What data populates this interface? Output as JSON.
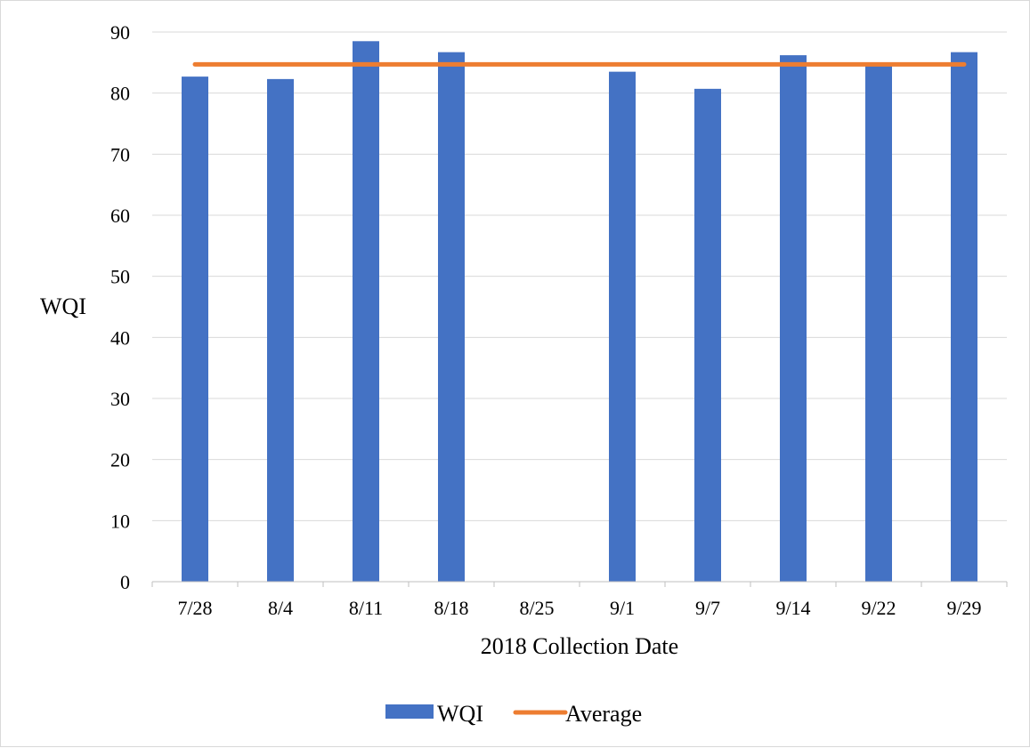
{
  "chart_data": {
    "type": "bar",
    "categories": [
      "7/28",
      "8/4",
      "8/11",
      "8/18",
      "8/25",
      "9/1",
      "9/7",
      "9/14",
      "9/22",
      "9/29"
    ],
    "series": [
      {
        "name": "WQI",
        "type": "bar",
        "color": "#4472C4",
        "values": [
          82.7,
          82.3,
          88.5,
          86.7,
          null,
          83.5,
          80.7,
          86.2,
          85.0,
          86.7
        ]
      },
      {
        "name": "Average",
        "type": "line",
        "color": "#ED7D31",
        "values": [
          84.7,
          84.7,
          84.7,
          84.7,
          84.7,
          84.7,
          84.7,
          84.7,
          84.7,
          84.7
        ]
      }
    ],
    "xlabel": "2018 Collection Date",
    "ylabel": "WQI",
    "ylim": [
      0,
      90
    ],
    "yticks": [
      0,
      10,
      20,
      30,
      40,
      50,
      60,
      70,
      80,
      90
    ],
    "grid": true,
    "legend_position": "bottom"
  }
}
